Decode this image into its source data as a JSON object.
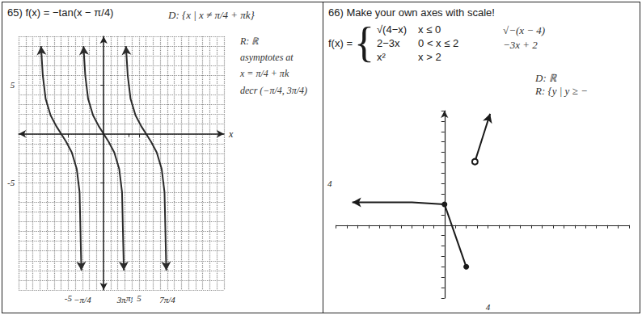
{
  "chart_data": [
    {
      "type": "line",
      "title": "65) f(x) = −tan(x − π/4)",
      "annotations": [
        "D: {x | x ≠ π/4 + πk}",
        "R: ℝ",
        "asymptotes at",
        "x = π/4 + πk",
        "decr (−π/4, 3π/4)"
      ],
      "x_label": "x",
      "xlim": [
        -12,
        17
      ],
      "ylim": [
        -16,
        10
      ],
      "xticks": [
        -5,
        {
          "value": 3.5,
          "label": "π"
        },
        5
      ],
      "yticks": [
        -5,
        5
      ],
      "asymptotes": [
        {
          "value": -3,
          "label": "−π/4"
        },
        {
          "value": 3,
          "label": "3π/4"
        },
        {
          "value": 9,
          "label": "7π/4"
        }
      ],
      "grid": true,
      "series": [
        {
          "color": "#2b2b2b",
          "marker": "arrows",
          "x": [
            -8.85,
            -8.6,
            -8.2,
            -7.5,
            -6.7,
            -6,
            -5.3,
            -4.5,
            -3.8,
            -3.4,
            -3.15
          ],
          "values": [
            9,
            6,
            3.6,
            1.9,
            0.8,
            0,
            -0.8,
            -1.9,
            -3.6,
            -6,
            -14
          ]
        },
        {
          "color": "#2b2b2b",
          "marker": "arrows",
          "x": [
            -2.85,
            -2.6,
            -2.2,
            -1.5,
            -0.7,
            0,
            0.7,
            1.5,
            2.2,
            2.6,
            2.85
          ],
          "values": [
            9,
            6,
            3.6,
            1.9,
            0.8,
            0,
            -0.8,
            -1.9,
            -3.6,
            -6,
            -14
          ]
        },
        {
          "color": "#2b2b2b",
          "marker": "arrows",
          "x": [
            3.15,
            3.4,
            3.8,
            4.5,
            5.3,
            6,
            6.7,
            7.5,
            8.2,
            8.6,
            8.85
          ],
          "values": [
            9,
            6,
            3.6,
            1.9,
            0.8,
            0,
            -0.8,
            -1.9,
            -3.6,
            -6,
            -14
          ]
        }
      ]
    },
    {
      "type": "line",
      "title": "66) Make your own axes with scale!",
      "function": {
        "name": "f(x) =",
        "pieces": [
          {
            "expr": "√(4−x)",
            "condition": "x ≤ 0"
          },
          {
            "expr": "2−3x",
            "condition": "0 < x ≤ 2"
          },
          {
            "expr": "x²",
            "condition": "x > 2"
          }
        ]
      },
      "annotations": [
        "√−(x − 4)",
        "−3x + 2",
        "D: ℝ",
        "R: {y | y ≥ −"
      ],
      "xlim": [
        -10,
        17
      ],
      "ylim": [
        -7,
        11
      ],
      "xticks": [
        4
      ],
      "yticks": [
        4
      ],
      "grid": false,
      "series": [
        {
          "color": "#1a1a1a",
          "marker": "arrow",
          "x": [
            -8.5,
            -6,
            -3,
            0
          ],
          "values": [
            2.2,
            2.2,
            2.2,
            2
          ]
        },
        {
          "color": "#1a1a1a",
          "marker": "dot",
          "x": [
            0,
            2
          ],
          "values": [
            2,
            -4
          ]
        },
        {
          "color": "#1a1a1a",
          "marker": "open",
          "x": [
            2.8,
            3.5,
            4.2
          ],
          "values": [
            6.1,
            8.4,
            10.7
          ]
        }
      ]
    }
  ]
}
